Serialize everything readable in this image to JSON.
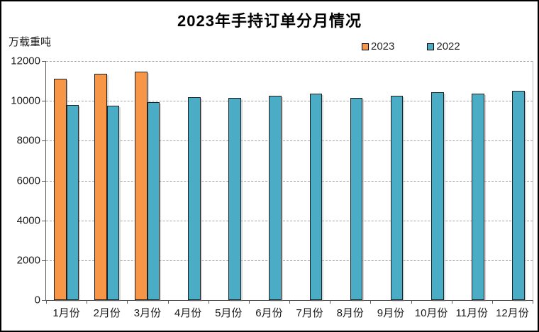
{
  "title": "2023年手持订单分月情况",
  "y_axis_unit_label": "万载重吨",
  "legend": {
    "items": [
      {
        "label": "2023",
        "color": "#F79646"
      },
      {
        "label": "2022",
        "color": "#4BACC6"
      }
    ]
  },
  "chart_data": {
    "type": "bar",
    "title": "2023年手持订单分月情况",
    "ylabel": "万载重吨",
    "xlabel": "",
    "categories": [
      "1月份",
      "2月份",
      "3月份",
      "4月份",
      "5月份",
      "6月份",
      "7月份",
      "8月份",
      "9月份",
      "10月份",
      "11月份",
      "12月份"
    ],
    "series": [
      {
        "name": "2023",
        "color": "#F79646",
        "values": [
          11100,
          11370,
          11450,
          null,
          null,
          null,
          null,
          null,
          null,
          null,
          null,
          null
        ]
      },
      {
        "name": "2022",
        "color": "#4BACC6",
        "values": [
          9800,
          9750,
          9930,
          10200,
          10150,
          10270,
          10350,
          10150,
          10250,
          10420,
          10350,
          10510
        ]
      }
    ],
    "ylim": [
      0,
      12000
    ],
    "ytick_step": 2000,
    "yticks": [
      0,
      2000,
      4000,
      6000,
      8000,
      10000,
      12000
    ],
    "grid": "horizontal-dashed",
    "legend_position": "top-right",
    "bar_border_color": "#1f1f1f"
  }
}
